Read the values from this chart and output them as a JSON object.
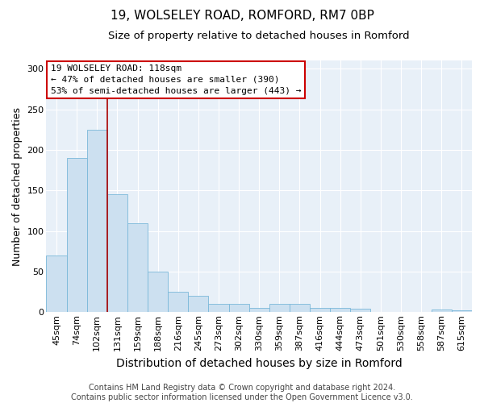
{
  "title1": "19, WOLSELEY ROAD, ROMFORD, RM7 0BP",
  "title2": "Size of property relative to detached houses in Romford",
  "xlabel": "Distribution of detached houses by size in Romford",
  "ylabel": "Number of detached properties",
  "categories": [
    "45sqm",
    "74sqm",
    "102sqm",
    "131sqm",
    "159sqm",
    "188sqm",
    "216sqm",
    "245sqm",
    "273sqm",
    "302sqm",
    "330sqm",
    "359sqm",
    "387sqm",
    "416sqm",
    "444sqm",
    "473sqm",
    "501sqm",
    "530sqm",
    "558sqm",
    "587sqm",
    "615sqm"
  ],
  "values": [
    70,
    190,
    225,
    145,
    110,
    50,
    25,
    20,
    10,
    10,
    5,
    10,
    10,
    5,
    5,
    4,
    0,
    0,
    0,
    3,
    2
  ],
  "bar_color": "#cce0f0",
  "bar_edge_color": "#7ab8d9",
  "vline_x": 2.5,
  "vline_color": "#aa0000",
  "annotation_text": "19 WOLSELEY ROAD: 118sqm\n← 47% of detached houses are smaller (390)\n53% of semi-detached houses are larger (443) →",
  "annotation_box_color": "#ffffff",
  "annotation_box_edge": "#cc0000",
  "ylim": [
    0,
    310
  ],
  "yticks": [
    0,
    50,
    100,
    150,
    200,
    250,
    300
  ],
  "background_color": "#e8f0f8",
  "footer": "Contains HM Land Registry data © Crown copyright and database right 2024.\nContains public sector information licensed under the Open Government Licence v3.0.",
  "title1_fontsize": 11,
  "title2_fontsize": 9.5,
  "xlabel_fontsize": 10,
  "ylabel_fontsize": 9,
  "tick_fontsize": 8,
  "footer_fontsize": 7,
  "annot_fontsize": 8
}
